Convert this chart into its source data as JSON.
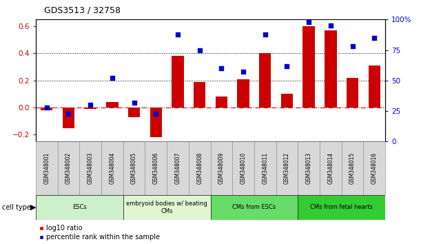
{
  "title": "GDS3513 / 32758",
  "samples": [
    "GSM348001",
    "GSM348002",
    "GSM348003",
    "GSM348004",
    "GSM348005",
    "GSM348006",
    "GSM348007",
    "GSM348008",
    "GSM348009",
    "GSM348010",
    "GSM348011",
    "GSM348012",
    "GSM348013",
    "GSM348014",
    "GSM348015",
    "GSM348016"
  ],
  "log10_ratio": [
    -0.02,
    -0.15,
    -0.01,
    0.04,
    -0.07,
    -0.22,
    0.38,
    0.19,
    0.08,
    0.21,
    0.4,
    0.1,
    0.6,
    0.57,
    0.22,
    0.31
  ],
  "percentile_rank": [
    28,
    23,
    30,
    52,
    32,
    23,
    88,
    75,
    60,
    57,
    88,
    62,
    98,
    95,
    78,
    85
  ],
  "cell_type_groups": [
    {
      "label": "ESCs",
      "start": 0,
      "end": 4,
      "color": "#ccf0cc"
    },
    {
      "label": "embryoid bodies w/ beating\nCMs",
      "start": 4,
      "end": 8,
      "color": "#e0f5d0"
    },
    {
      "label": "CMs from ESCs",
      "start": 8,
      "end": 12,
      "color": "#66dd66"
    },
    {
      "label": "CMs from fetal hearts",
      "start": 12,
      "end": 16,
      "color": "#33cc33"
    }
  ],
  "bar_color": "#cc0000",
  "dot_color": "#0000cc",
  "ylim_left": [
    -0.25,
    0.65
  ],
  "ylim_right": [
    0,
    100
  ],
  "yticks_left": [
    -0.2,
    0.0,
    0.2,
    0.4,
    0.6
  ],
  "yticks_right": [
    0,
    25,
    50,
    75,
    100
  ],
  "hline_color": "#cc0000",
  "dotted_line_color": "#000000"
}
